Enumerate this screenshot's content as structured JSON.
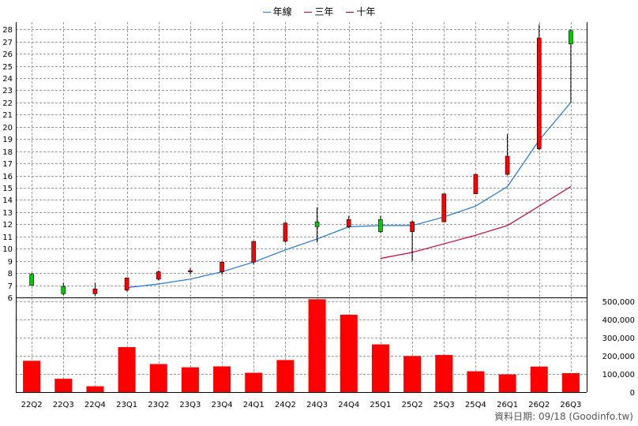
{
  "legend": {
    "items": [
      {
        "label": "年線",
        "color": "#1f77d4"
      },
      {
        "label": "三年",
        "color": "#c8003c"
      },
      {
        "label": "十年",
        "color": "#8b0046"
      }
    ]
  },
  "footer": "資料日期: 09/18  (Goodinfo.tw)",
  "chart_data": [
    {
      "type": "candlestick",
      "categories": [
        "22Q2",
        "22Q3",
        "22Q4",
        "23Q1",
        "23Q2",
        "23Q3",
        "23Q4",
        "24Q1",
        "24Q2",
        "24Q3",
        "24Q4",
        "25Q1",
        "25Q2",
        "25Q3",
        "25Q4",
        "26Q1",
        "26Q2",
        "26Q3"
      ],
      "ylim": [
        6,
        28.6
      ],
      "yticks": [
        6,
        7,
        8,
        9,
        10,
        11,
        12,
        13,
        14,
        15,
        16,
        17,
        18,
        19,
        20,
        21,
        22,
        23,
        24,
        25,
        26,
        27,
        28
      ],
      "grid": true,
      "up_color": "#ff0000",
      "down_color": "#00cc00",
      "candles": [
        {
          "o": 7.9,
          "h": 8.0,
          "l": 7.0,
          "c": 7.0
        },
        {
          "o": 6.9,
          "h": 7.2,
          "l": 6.2,
          "c": 6.3
        },
        {
          "o": 6.3,
          "h": 7.2,
          "l": 6.1,
          "c": 6.7
        },
        {
          "o": 6.6,
          "h": 7.6,
          "l": 6.5,
          "c": 7.6
        },
        {
          "o": 7.5,
          "h": 8.2,
          "l": 7.4,
          "c": 8.1
        },
        {
          "o": 8.1,
          "h": 8.4,
          "l": 7.9,
          "c": 8.2
        },
        {
          "o": 8.1,
          "h": 8.9,
          "l": 7.9,
          "c": 8.9
        },
        {
          "o": 8.9,
          "h": 10.6,
          "l": 8.7,
          "c": 10.6
        },
        {
          "o": 10.6,
          "h": 12.2,
          "l": 10.5,
          "c": 12.1
        },
        {
          "o": 12.2,
          "h": 13.4,
          "l": 10.5,
          "c": 11.8
        },
        {
          "o": 11.8,
          "h": 12.7,
          "l": 11.7,
          "c": 12.4
        },
        {
          "o": 12.4,
          "h": 12.7,
          "l": 11.3,
          "c": 11.4
        },
        {
          "o": 11.4,
          "h": 12.3,
          "l": 9.0,
          "c": 12.2
        },
        {
          "o": 12.2,
          "h": 14.5,
          "l": 12.2,
          "c": 14.5
        },
        {
          "o": 14.5,
          "h": 16.1,
          "l": 14.5,
          "c": 16.1
        },
        {
          "o": 16.1,
          "h": 19.4,
          "l": 16.0,
          "c": 17.6
        },
        {
          "o": 18.2,
          "h": 28.4,
          "l": 18.1,
          "c": 27.3
        },
        {
          "o": 27.9,
          "h": 28.0,
          "l": 22.0,
          "c": 26.8
        }
      ],
      "series": [
        {
          "name": "年線",
          "color": "#1f77d4",
          "values": [
            null,
            null,
            null,
            6.8,
            7.1,
            7.5,
            8.1,
            8.9,
            9.9,
            10.8,
            11.8,
            11.9,
            11.9,
            12.6,
            13.5,
            15.1,
            18.9,
            22.0
          ]
        },
        {
          "name": "三年",
          "color": "#c8003c",
          "values": [
            null,
            null,
            null,
            null,
            null,
            null,
            null,
            null,
            null,
            null,
            null,
            9.2,
            9.7,
            10.4,
            11.1,
            11.9,
            13.5,
            15.1
          ]
        }
      ]
    },
    {
      "type": "bar",
      "categories": [
        "22Q2",
        "22Q3",
        "22Q4",
        "23Q1",
        "23Q2",
        "23Q3",
        "23Q4",
        "24Q1",
        "24Q2",
        "24Q3",
        "24Q4",
        "25Q1",
        "25Q2",
        "25Q3",
        "25Q4",
        "26Q1",
        "26Q2",
        "26Q3"
      ],
      "values": [
        172000,
        73000,
        32000,
        247000,
        154000,
        136000,
        141000,
        106000,
        176000,
        510000,
        425000,
        262000,
        198000,
        204000,
        114000,
        97000,
        140000,
        104000
      ],
      "ylim": [
        0,
        520000
      ],
      "yticks": [
        0,
        100000,
        200000,
        300000,
        400000,
        500000
      ],
      "ytick_labels": [
        "0",
        "100,000",
        "200,000",
        "300,000",
        "400,000",
        "500,000"
      ],
      "color": "#ff0000",
      "grid": true
    }
  ]
}
